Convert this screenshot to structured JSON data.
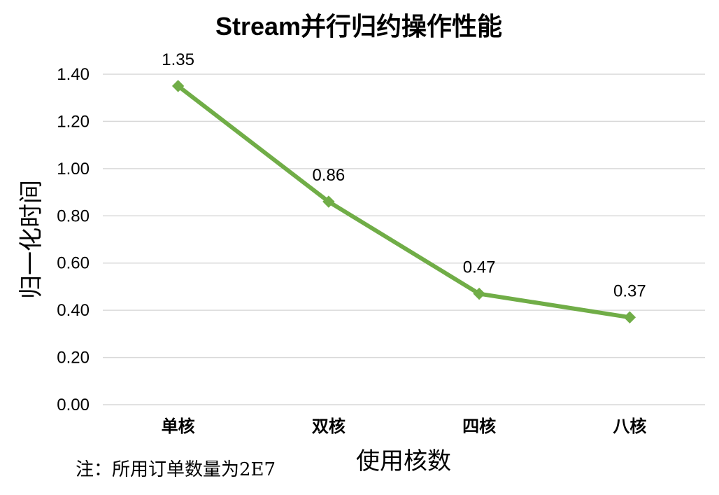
{
  "chart_data": {
    "type": "line",
    "title": "Stream并行归约操作性能",
    "xlabel": "使用核数",
    "ylabel": "归一化时间",
    "categories": [
      "单核",
      "双核",
      "四核",
      "八核"
    ],
    "series": [
      {
        "values": [
          1.35,
          0.86,
          0.47,
          0.37
        ],
        "data_labels": [
          "1.35",
          "0.86",
          "0.47",
          "0.37"
        ],
        "color": "#70ad47",
        "marker": "diamond"
      }
    ],
    "ylim": [
      0,
      1.4
    ],
    "yticks": [
      0.0,
      0.2,
      0.4,
      0.6,
      0.8,
      1.0,
      1.2,
      1.4
    ],
    "ytick_labels": [
      "0.00",
      "0.20",
      "0.40",
      "0.60",
      "0.80",
      "1.00",
      "1.20",
      "1.40"
    ],
    "grid": true,
    "gridline_color": "#d9d9d9"
  },
  "note": "注：所用订单数量为2E7"
}
